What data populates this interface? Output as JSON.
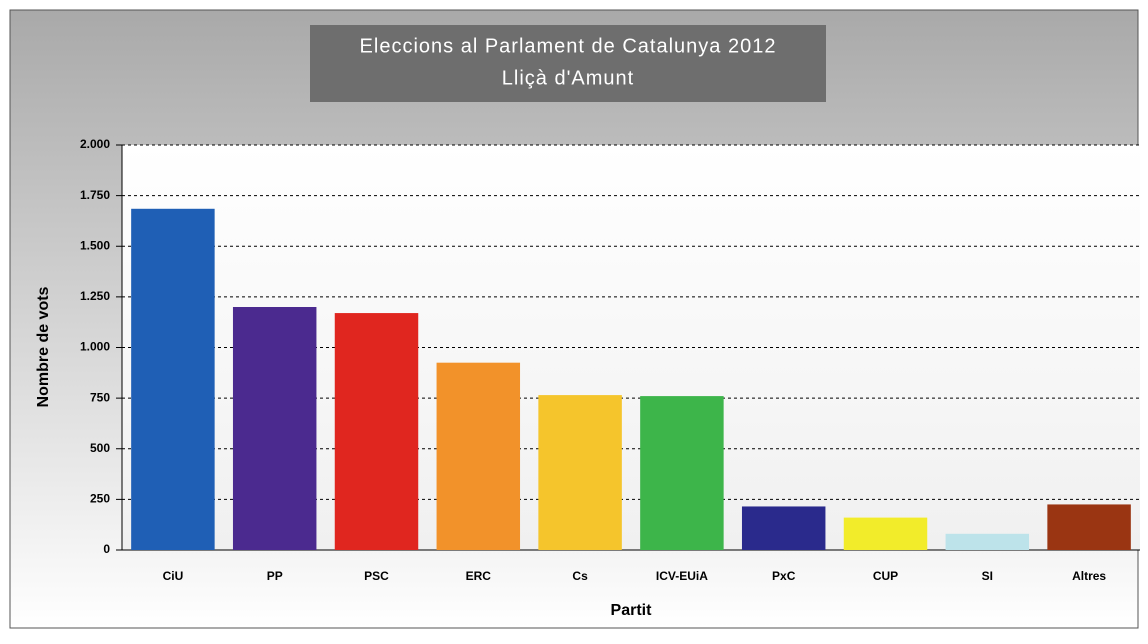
{
  "chart_data": {
    "type": "bar",
    "title": "Eleccions al Parlament de Catalunya 2012",
    "subtitle": "Lliçà d'Amunt",
    "x_label": "Partit",
    "y_label": "Nombre de vots",
    "categories": [
      "CiU",
      "PP",
      "PSC",
      "ERC",
      "Cs",
      "ICV-EUiA",
      "PxC",
      "CUP",
      "SI",
      "Altres"
    ],
    "values": [
      1685,
      1200,
      1170,
      925,
      765,
      760,
      215,
      160,
      80,
      225
    ],
    "colors": [
      "#1f5fb5",
      "#4b2a8f",
      "#e0261f",
      "#f2922a",
      "#f5c52c",
      "#3db54a",
      "#2a2a8c",
      "#f2ec2a",
      "#bde3ea",
      "#9a3512"
    ],
    "ylim": [
      0,
      2000
    ],
    "yticks": [
      0,
      250,
      500,
      750,
      {
        "value": 1000,
        "label": "1.000"
      },
      {
        "value": 1250,
        "label": "1.250"
      },
      {
        "value": 1500,
        "label": "1.500"
      },
      {
        "value": 1750,
        "label": "1.750"
      },
      {
        "value": 2000,
        "label": "2.000"
      }
    ],
    "grid": true
  }
}
